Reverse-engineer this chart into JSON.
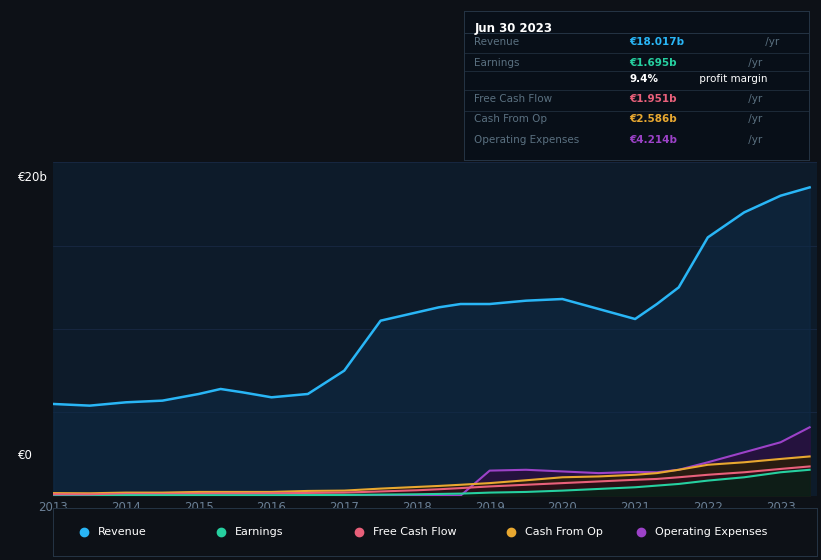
{
  "bg_color": "#0d1117",
  "chart_bg": "#0d1b2a",
  "years": [
    2013.0,
    2013.5,
    2014.0,
    2014.5,
    2015.0,
    2015.3,
    2015.6,
    2016.0,
    2016.5,
    2017.0,
    2017.5,
    2018.0,
    2018.3,
    2018.6,
    2019.0,
    2019.5,
    2020.0,
    2020.5,
    2021.0,
    2021.3,
    2021.6,
    2022.0,
    2022.5,
    2023.0,
    2023.4
  ],
  "revenue": [
    5.5,
    5.4,
    5.6,
    5.7,
    6.1,
    6.4,
    6.2,
    5.9,
    6.1,
    7.5,
    10.5,
    11.0,
    11.3,
    11.5,
    11.5,
    11.7,
    11.8,
    11.2,
    10.6,
    11.5,
    12.5,
    15.5,
    17.0,
    18.0,
    18.5
  ],
  "earnings": [
    -0.05,
    -0.05,
    0.02,
    0.02,
    0.02,
    0.02,
    0.02,
    0.02,
    0.03,
    0.04,
    0.06,
    0.08,
    0.1,
    0.12,
    0.18,
    0.22,
    0.3,
    0.4,
    0.5,
    0.6,
    0.7,
    0.9,
    1.1,
    1.4,
    1.55
  ],
  "free_cash_flow": [
    0.08,
    0.07,
    0.1,
    0.1,
    0.12,
    0.13,
    0.13,
    0.14,
    0.16,
    0.18,
    0.25,
    0.32,
    0.38,
    0.45,
    0.55,
    0.65,
    0.75,
    0.85,
    0.95,
    1.0,
    1.1,
    1.25,
    1.4,
    1.6,
    1.75
  ],
  "cash_from_op": [
    0.15,
    0.14,
    0.18,
    0.18,
    0.22,
    0.22,
    0.22,
    0.22,
    0.28,
    0.3,
    0.42,
    0.52,
    0.58,
    0.65,
    0.75,
    0.92,
    1.1,
    1.15,
    1.25,
    1.35,
    1.55,
    1.85,
    2.0,
    2.2,
    2.35
  ],
  "op_expenses": [
    0.0,
    0.0,
    0.0,
    0.0,
    0.0,
    0.0,
    0.0,
    0.0,
    0.0,
    0.0,
    0.0,
    0.0,
    0.0,
    0.0,
    1.5,
    1.55,
    1.45,
    1.35,
    1.42,
    1.4,
    1.55,
    2.0,
    2.6,
    3.2,
    4.1
  ],
  "revenue_color": "#29b6f6",
  "earnings_color": "#26d0a0",
  "fcf_color": "#e8607a",
  "cashop_color": "#e8a830",
  "opex_color": "#9c42c8",
  "ylim": [
    0,
    20
  ],
  "xticks": [
    2013,
    2014,
    2015,
    2016,
    2017,
    2018,
    2019,
    2020,
    2021,
    2022,
    2023
  ],
  "grid_color": "#1e3050",
  "text_color": "#6a7f95",
  "legend_items": [
    "Revenue",
    "Earnings",
    "Free Cash Flow",
    "Cash From Op",
    "Operating Expenses"
  ],
  "legend_colors": [
    "#29b6f6",
    "#26d0a0",
    "#e8607a",
    "#e8a830",
    "#9c42c8"
  ],
  "info_title": "Jun 30 2023",
  "info_rows": [
    {
      "label": "Revenue",
      "value_bold": "€18.017b",
      "value_rest": " /yr",
      "value_color": "#29b6f6"
    },
    {
      "label": "Earnings",
      "value_bold": "€1.695b",
      "value_rest": " /yr",
      "value_color": "#26d0a0"
    },
    {
      "label": "",
      "value_bold": "9.4%",
      "value_rest": " profit margin",
      "value_color": "#ffffff"
    },
    {
      "label": "Free Cash Flow",
      "value_bold": "€1.951b",
      "value_rest": " /yr",
      "value_color": "#e8607a"
    },
    {
      "label": "Cash From Op",
      "value_bold": "€2.586b",
      "value_rest": " /yr",
      "value_color": "#e8a830"
    },
    {
      "label": "Operating Expenses",
      "value_bold": "€4.214b",
      "value_rest": " /yr",
      "value_color": "#9c42c8"
    }
  ]
}
